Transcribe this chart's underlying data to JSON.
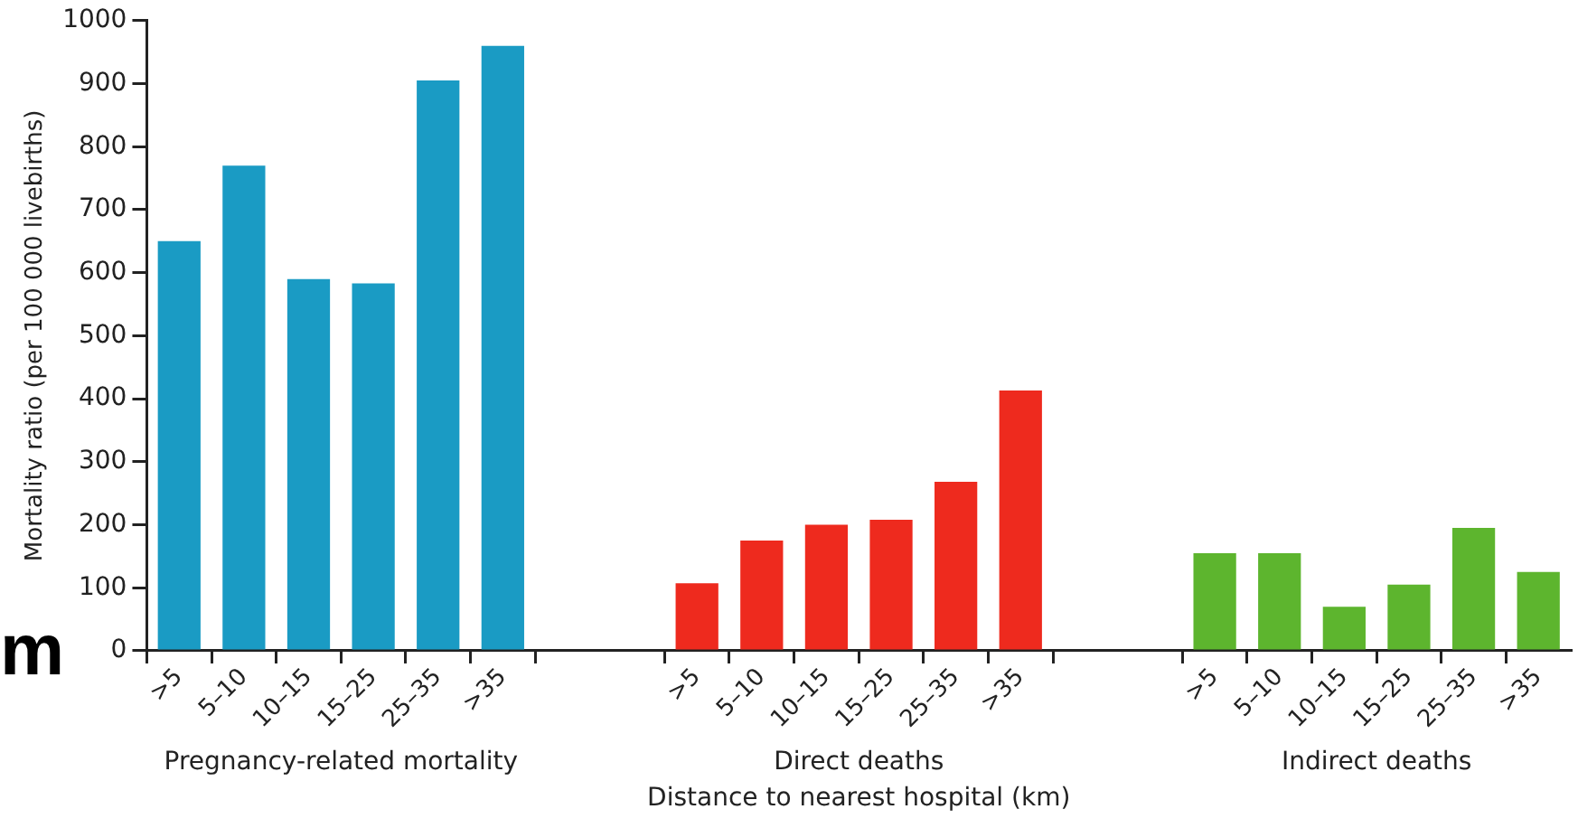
{
  "chart_data": {
    "type": "bar",
    "xlabel": "Distance to nearest hospital (km)",
    "ylabel": "Mortality ratio (per 100 000 livebirths)",
    "categories": [
      ">5",
      "5–10",
      "10–15",
      "15–25",
      "25–35",
      ">35",
      null,
      null,
      ">5",
      "5–10",
      "10–15",
      "15–25",
      "25–35",
      ">35",
      null,
      null,
      ">5",
      "5–10",
      "10–15",
      "15–25",
      "25–35",
      ">35"
    ],
    "series": [
      {
        "color": "#1a9bc4",
        "values": [
          650,
          770,
          590,
          583,
          905,
          960,
          null,
          null,
          null,
          null,
          null,
          null,
          null,
          null,
          null,
          null,
          null,
          null,
          null,
          null,
          null,
          null
        ]
      },
      {
        "color": "#ee2a1e",
        "values": [
          null,
          null,
          null,
          null,
          null,
          null,
          null,
          null,
          107,
          175,
          200,
          208,
          268,
          413,
          null,
          null,
          null,
          null,
          null,
          null,
          null,
          null
        ]
      },
      {
        "color": "#5db52e",
        "values": [
          null,
          null,
          null,
          null,
          null,
          null,
          null,
          null,
          null,
          null,
          null,
          null,
          null,
          null,
          null,
          null,
          155,
          155,
          70,
          105,
          195,
          125
        ]
      }
    ],
    "ylim": [
      0,
      1000
    ],
    "yticks": [
      0,
      100,
      200,
      300,
      400,
      500,
      600,
      700,
      800,
      900,
      1000
    ],
    "grid": false,
    "legend": false,
    "annotations": [
      "Pregnancy-related mortality",
      "Direct deaths",
      "Indirect deaths",
      "m"
    ]
  }
}
